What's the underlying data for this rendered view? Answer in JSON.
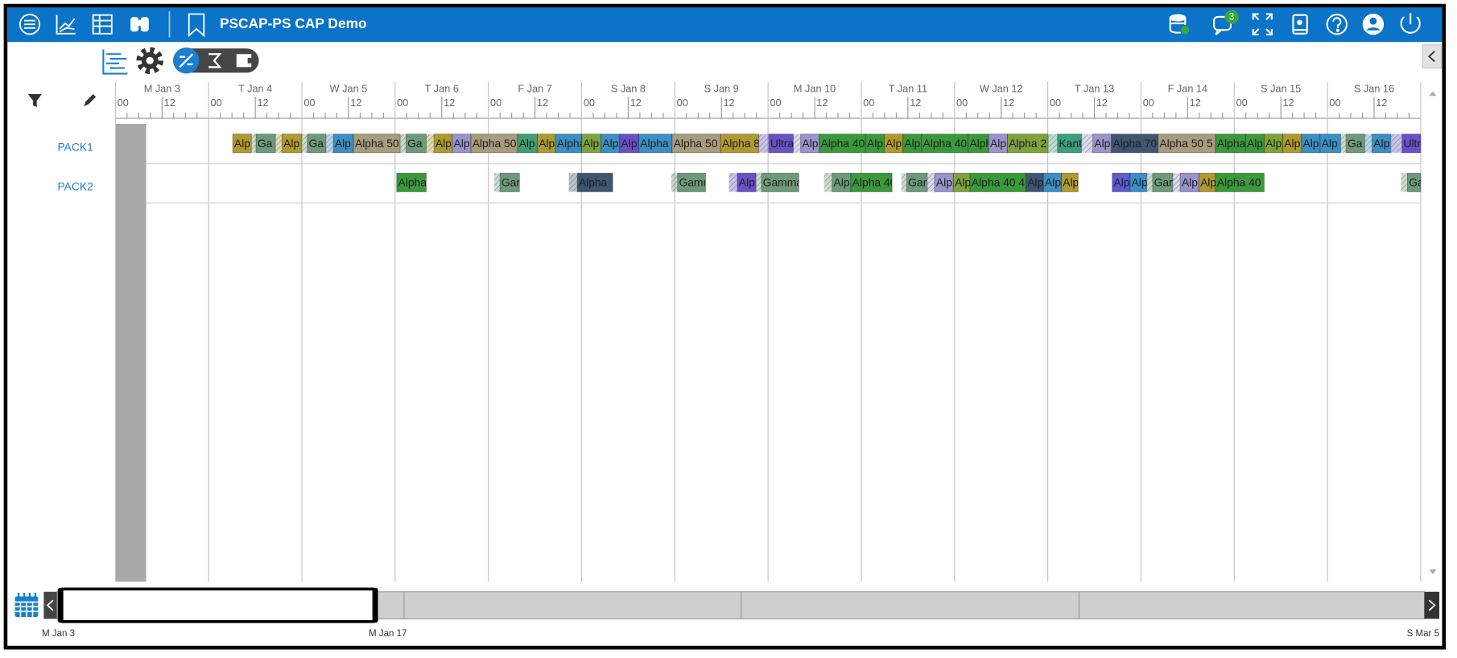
{
  "header": {
    "title": "PSCAP-PS CAP Demo",
    "badge": "3"
  },
  "timeline": {
    "days": [
      "M Jan 3",
      "T Jan 4",
      "W Jan 5",
      "T Jan 6",
      "F Jan 7",
      "S Jan 8",
      "S Jan 9",
      "M Jan 10",
      "T Jan 11",
      "W Jan 12",
      "T Jan 13",
      "F Jan 14",
      "S Jan 15",
      "S Jan 16"
    ],
    "hour_labels": [
      "00",
      "12"
    ],
    "xlim": [
      0,
      336
    ],
    "shaded_until": 7.9
  },
  "rows": [
    {
      "label": "PACK1",
      "tasks": [
        {
          "label": "Alp",
          "start": 30.2,
          "end": 35.0,
          "color": "#b09a2e"
        },
        {
          "label": "Ga",
          "start": 35.0,
          "run": 36.2,
          "end": 41.2,
          "color": "#6e9a7c"
        },
        {
          "label": "Alp",
          "start": 41.2,
          "run": 42.9,
          "end": 47.9,
          "color": "#b09a2e"
        },
        {
          "label": "Ga",
          "start": 47.9,
          "run": 49.4,
          "end": 54.2,
          "color": "#6e9a7c"
        },
        {
          "label": "Alp",
          "start": 54.2,
          "run": 56.1,
          "end": 61.3,
          "color": "#3a8fc4"
        },
        {
          "label": "Alpha 50",
          "start": 61.3,
          "end": 73.3,
          "color": "#a89c7c"
        },
        {
          "label": "Ga",
          "start": 73.3,
          "run": 74.8,
          "end": 80.0,
          "color": "#6e9a7c"
        },
        {
          "label": "Alp",
          "start": 80.0,
          "run": 82.0,
          "end": 86.7,
          "color": "#b09a2e"
        },
        {
          "label": "Alp",
          "start": 86.7,
          "end": 91.5,
          "color": "#9a94cc"
        },
        {
          "label": "Alpha 50",
          "start": 91.5,
          "end": 103.5,
          "color": "#a89c7c"
        },
        {
          "label": "Alp",
          "start": 103.5,
          "end": 108.6,
          "color": "#3f9f70"
        },
        {
          "label": "Alp",
          "start": 108.6,
          "end": 113.3,
          "color": "#b09a2e"
        },
        {
          "label": "Alpha",
          "start": 113.3,
          "end": 120.0,
          "color": "#3a8fc4"
        },
        {
          "label": "Alp",
          "start": 120.0,
          "end": 125.0,
          "color": "#7ea33c"
        },
        {
          "label": "Alp",
          "start": 125.0,
          "end": 129.8,
          "color": "#3a8fc4"
        },
        {
          "label": "Alp",
          "start": 129.8,
          "end": 134.7,
          "color": "#6a4fc7"
        },
        {
          "label": "Alpha",
          "start": 134.7,
          "end": 143.3,
          "color": "#3a8fc4"
        },
        {
          "label": "Alpha 50",
          "start": 143.3,
          "end": 155.8,
          "color": "#a89c7c"
        },
        {
          "label": "Alpha 8",
          "start": 155.8,
          "end": 165.6,
          "color": "#b09a2e"
        },
        {
          "label": "Ultra",
          "start": 165.6,
          "run": 168.2,
          "end": 174.5,
          "color": "#6a4fc7"
        },
        {
          "label": "Alp",
          "start": 174.5,
          "run": 176.4,
          "end": 181.2,
          "color": "#9a94cc"
        },
        {
          "label": "Alpha 40",
          "start": 181.2,
          "end": 193.1,
          "color": "#3a9a3a"
        },
        {
          "label": "Alp",
          "start": 193.1,
          "end": 197.9,
          "color": "#3a9a3a"
        },
        {
          "label": "Alp",
          "start": 197.9,
          "end": 202.7,
          "color": "#b09a2e"
        },
        {
          "label": "Alp",
          "start": 202.7,
          "end": 207.5,
          "color": "#3a9a3a"
        },
        {
          "label": "Alpha 40",
          "start": 207.5,
          "end": 219.5,
          "color": "#3a9a3a"
        },
        {
          "label": "Alph",
          "start": 219.5,
          "end": 224.8,
          "color": "#3a9a3a"
        },
        {
          "label": "Alp",
          "start": 224.8,
          "end": 229.6,
          "color": "#9a94cc"
        },
        {
          "label": "Alpha 2",
          "start": 229.6,
          "end": 240.1,
          "color": "#7ea33c"
        },
        {
          "label": "Kant",
          "start": 240.1,
          "run": 242.5,
          "end": 248.7,
          "color": "#3aa07c"
        },
        {
          "label": "Alp",
          "start": 248.7,
          "run": 251.6,
          "end": 256.4,
          "color": "#9a94cc"
        },
        {
          "label": "Alpha 70",
          "start": 256.4,
          "end": 268.4,
          "color": "#3f5572"
        },
        {
          "label": "Alpha 50 5",
          "start": 268.4,
          "end": 283.2,
          "color": "#a89c7c"
        },
        {
          "label": "Alpha",
          "start": 283.2,
          "end": 290.9,
          "color": "#3a9a3a"
        },
        {
          "label": "Alp",
          "start": 290.9,
          "end": 295.7,
          "color": "#3a9a3a"
        },
        {
          "label": "Alp",
          "start": 295.7,
          "end": 300.5,
          "color": "#7ea33c"
        },
        {
          "label": "Alp",
          "start": 300.5,
          "end": 305.3,
          "color": "#b09a2e"
        },
        {
          "label": "Alp",
          "start": 305.3,
          "end": 310.1,
          "color": "#3a8fc4"
        },
        {
          "label": "Alp",
          "start": 310.1,
          "end": 315.4,
          "color": "#3a8fc4"
        },
        {
          "label": "Ga",
          "start": 315.4,
          "run": 316.8,
          "end": 321.6,
          "color": "#6e9a7c"
        },
        {
          "label": "Alp",
          "start": 321.6,
          "run": 323.5,
          "end": 328.3,
          "color": "#3a8fc4"
        },
        {
          "label": "Ultr",
          "start": 328.3,
          "run": 331.2,
          "end": 336.0,
          "color": "#6a4fc7"
        }
      ]
    },
    {
      "label": "PACK2",
      "tasks": [
        {
          "label": "Alpha",
          "start": 72.4,
          "end": 80.0,
          "color": "#3a9a3a"
        },
        {
          "label": "Gar",
          "start": 97.5,
          "run": 99.0,
          "end": 104.0,
          "color": "#6e9a7c"
        },
        {
          "label": "Alpha",
          "start": 116.7,
          "run": 118.9,
          "end": 128.0,
          "color": "#3f5572"
        },
        {
          "label": "Gamm",
          "start": 143.1,
          "run": 144.7,
          "end": 151.9,
          "color": "#6e9a7c"
        },
        {
          "label": "Alp",
          "start": 157.9,
          "run": 160.1,
          "end": 164.9,
          "color": "#6a4fc7"
        },
        {
          "label": "Gamma",
          "start": 164.9,
          "run": 166.3,
          "end": 175.9,
          "color": "#6e9a7c"
        },
        {
          "label": "Alp",
          "start": 182.4,
          "run": 184.5,
          "end": 189.3,
          "color": "#6e9a7c"
        },
        {
          "label": "Alpha 40",
          "start": 189.3,
          "end": 199.9,
          "color": "#3a9a3a"
        },
        {
          "label": "Gar",
          "start": 202.3,
          "run": 203.7,
          "end": 209.0,
          "color": "#6e9a7c"
        },
        {
          "label": "Alp",
          "start": 209.0,
          "run": 210.9,
          "end": 215.7,
          "color": "#9a94cc"
        },
        {
          "label": "Alp",
          "start": 215.7,
          "end": 220.0,
          "color": "#7ea33c"
        },
        {
          "label": "Alpha 40 4",
          "start": 220.0,
          "end": 234.4,
          "color": "#3a9a3a"
        },
        {
          "label": "Alp",
          "start": 234.4,
          "end": 238.9,
          "color": "#3f5572"
        },
        {
          "label": "Alp",
          "start": 238.9,
          "end": 243.5,
          "color": "#3a8fc4"
        },
        {
          "label": "Alp",
          "start": 243.5,
          "end": 247.8,
          "color": "#b09a2e"
        },
        {
          "label": "Alp",
          "start": 256.6,
          "end": 261.2,
          "color": "#5d5bd0"
        },
        {
          "label": "Alp",
          "start": 261.2,
          "end": 265.5,
          "color": "#3a8fc4"
        },
        {
          "label": "Gar",
          "start": 265.5,
          "run": 267.0,
          "end": 272.2,
          "color": "#6e9a7c"
        },
        {
          "label": "Alp",
          "start": 272.2,
          "run": 274.1,
          "end": 278.9,
          "color": "#9a94cc"
        },
        {
          "label": "Alp",
          "start": 278.9,
          "end": 283.2,
          "color": "#b09a2e"
        },
        {
          "label": "Alpha 40",
          "start": 283.2,
          "end": 295.7,
          "color": "#3a9a3a"
        },
        {
          "label": "Ga",
          "start": 330.9,
          "run": 332.6,
          "end": 336.0,
          "color": "#6e9a7c"
        }
      ]
    }
  ],
  "overview": {
    "labels": [
      "M Jan 3",
      "M Jan 17",
      "S Mar 5"
    ]
  }
}
